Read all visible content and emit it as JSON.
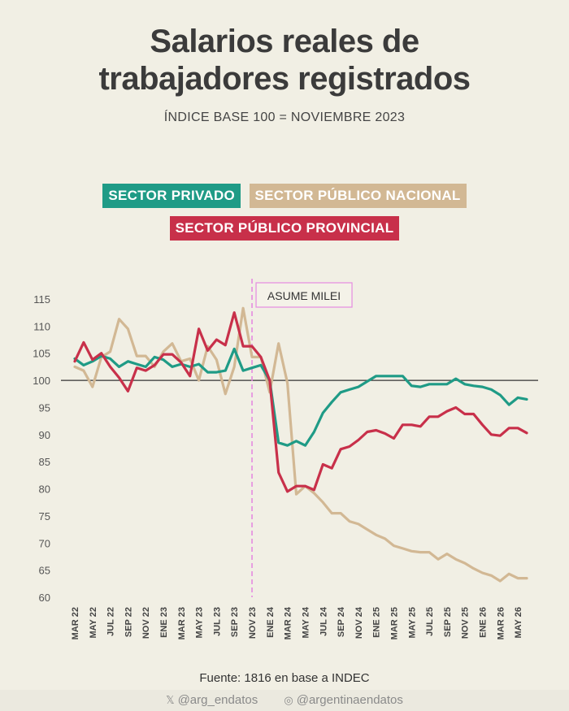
{
  "header": {
    "title_line1": "Salarios reales de",
    "title_line2": "trabajadores registrados",
    "subtitle": "ÍNDICE BASE 100 = NOVIEMBRE 2023"
  },
  "colors": {
    "privado": "#1f9b86",
    "nacional": "#d2b894",
    "provincial": "#c8304a",
    "annotation": "#e58be0"
  },
  "source": "Fuente: 1816 en base a INDEC",
  "footer": {
    "twitter_handle": "@arg_endatos",
    "twitter_icon": "x-icon",
    "instagram_handle": "@argentinaendatos",
    "instagram_icon": "instagram-icon"
  },
  "chart_data": {
    "type": "line",
    "annotation": {
      "label": "ASUME MILEI",
      "at": "NOV 23"
    },
    "reference_line": 100,
    "ylim": [
      60,
      115
    ],
    "yticks": [
      60,
      65,
      70,
      75,
      80,
      85,
      90,
      95,
      100,
      105,
      110,
      115
    ],
    "tick_labels": [
      "MAR 22",
      "MAY 22",
      "JUL 22",
      "SEP 22",
      "NOV 22",
      "ENE 23",
      "MAR 23",
      "MAY 23",
      "JUL 23",
      "SEP 23",
      "NOV 23",
      "ENE 24",
      "MAR 24",
      "MAY 24",
      "JUL 24",
      "SEP 24",
      "NOV 24",
      "ENE 25",
      "MAR 25",
      "MAY 25",
      "JUL 25",
      "SEP 25",
      "NOV 25",
      "ENE 26",
      "MAR 26",
      "MAY 26"
    ],
    "series": [
      {
        "name": "SECTOR PRIVADO",
        "color_key": "privado",
        "values": [
          104,
          102.8,
          103.5,
          104.5,
          104,
          102.5,
          103.5,
          103,
          102.5,
          104.3,
          103.8,
          102.5,
          103,
          102.5,
          103,
          101.5,
          101.5,
          101.8,
          105.8,
          101.8,
          102.3,
          102.8,
          100,
          88.5,
          88,
          88.8,
          88,
          90.5,
          94,
          96,
          97.8,
          98.3,
          98.8,
          99.8,
          100.8,
          100.8,
          100.8,
          100.8,
          99,
          98.8,
          99.3,
          99.3,
          99.3,
          100.3,
          99.3,
          99,
          98.8,
          98.3,
          97.3,
          95.5,
          96.8,
          96.5
        ]
      },
      {
        "name": "SECTOR PÚBLICO NACIONAL",
        "color_key": "nacional",
        "values": [
          102.5,
          101.8,
          98.8,
          104.3,
          105.3,
          111.3,
          109.5,
          104.5,
          104.5,
          102.5,
          105.3,
          106.8,
          103.5,
          104,
          100,
          106.3,
          103.8,
          97.5,
          102.5,
          113.3,
          104.3,
          104.3,
          97.8,
          106.8,
          99.5,
          79,
          80.5,
          79.2,
          77.5,
          75.5,
          75.5,
          74,
          73.5,
          72.5,
          71.5,
          70.8,
          69.5,
          69,
          68.5,
          68.3,
          68.3,
          67,
          68,
          67,
          66.3,
          65.3,
          64.5,
          64,
          63,
          64.3,
          63.5,
          63.5
        ]
      },
      {
        "name": "SECTOR PÚBLICO PROVINCIAL",
        "color_key": "provincial",
        "values": [
          103.5,
          107,
          103.8,
          105,
          102.5,
          100.5,
          98,
          102.3,
          101.8,
          102.8,
          104.8,
          104.8,
          103.3,
          100.8,
          109.5,
          105.5,
          107.5,
          106.5,
          112.5,
          106.3,
          106.3,
          104.3,
          100,
          83,
          79.5,
          80.5,
          80.5,
          79.8,
          84.5,
          83.8,
          87.3,
          87.8,
          89,
          90.5,
          90.8,
          90.2,
          89.3,
          91.8,
          91.8,
          91.5,
          93.3,
          93.3,
          94.3,
          95,
          93.8,
          93.8,
          91.8,
          90,
          89.8,
          91.2,
          91.2,
          90.3
        ]
      }
    ]
  }
}
